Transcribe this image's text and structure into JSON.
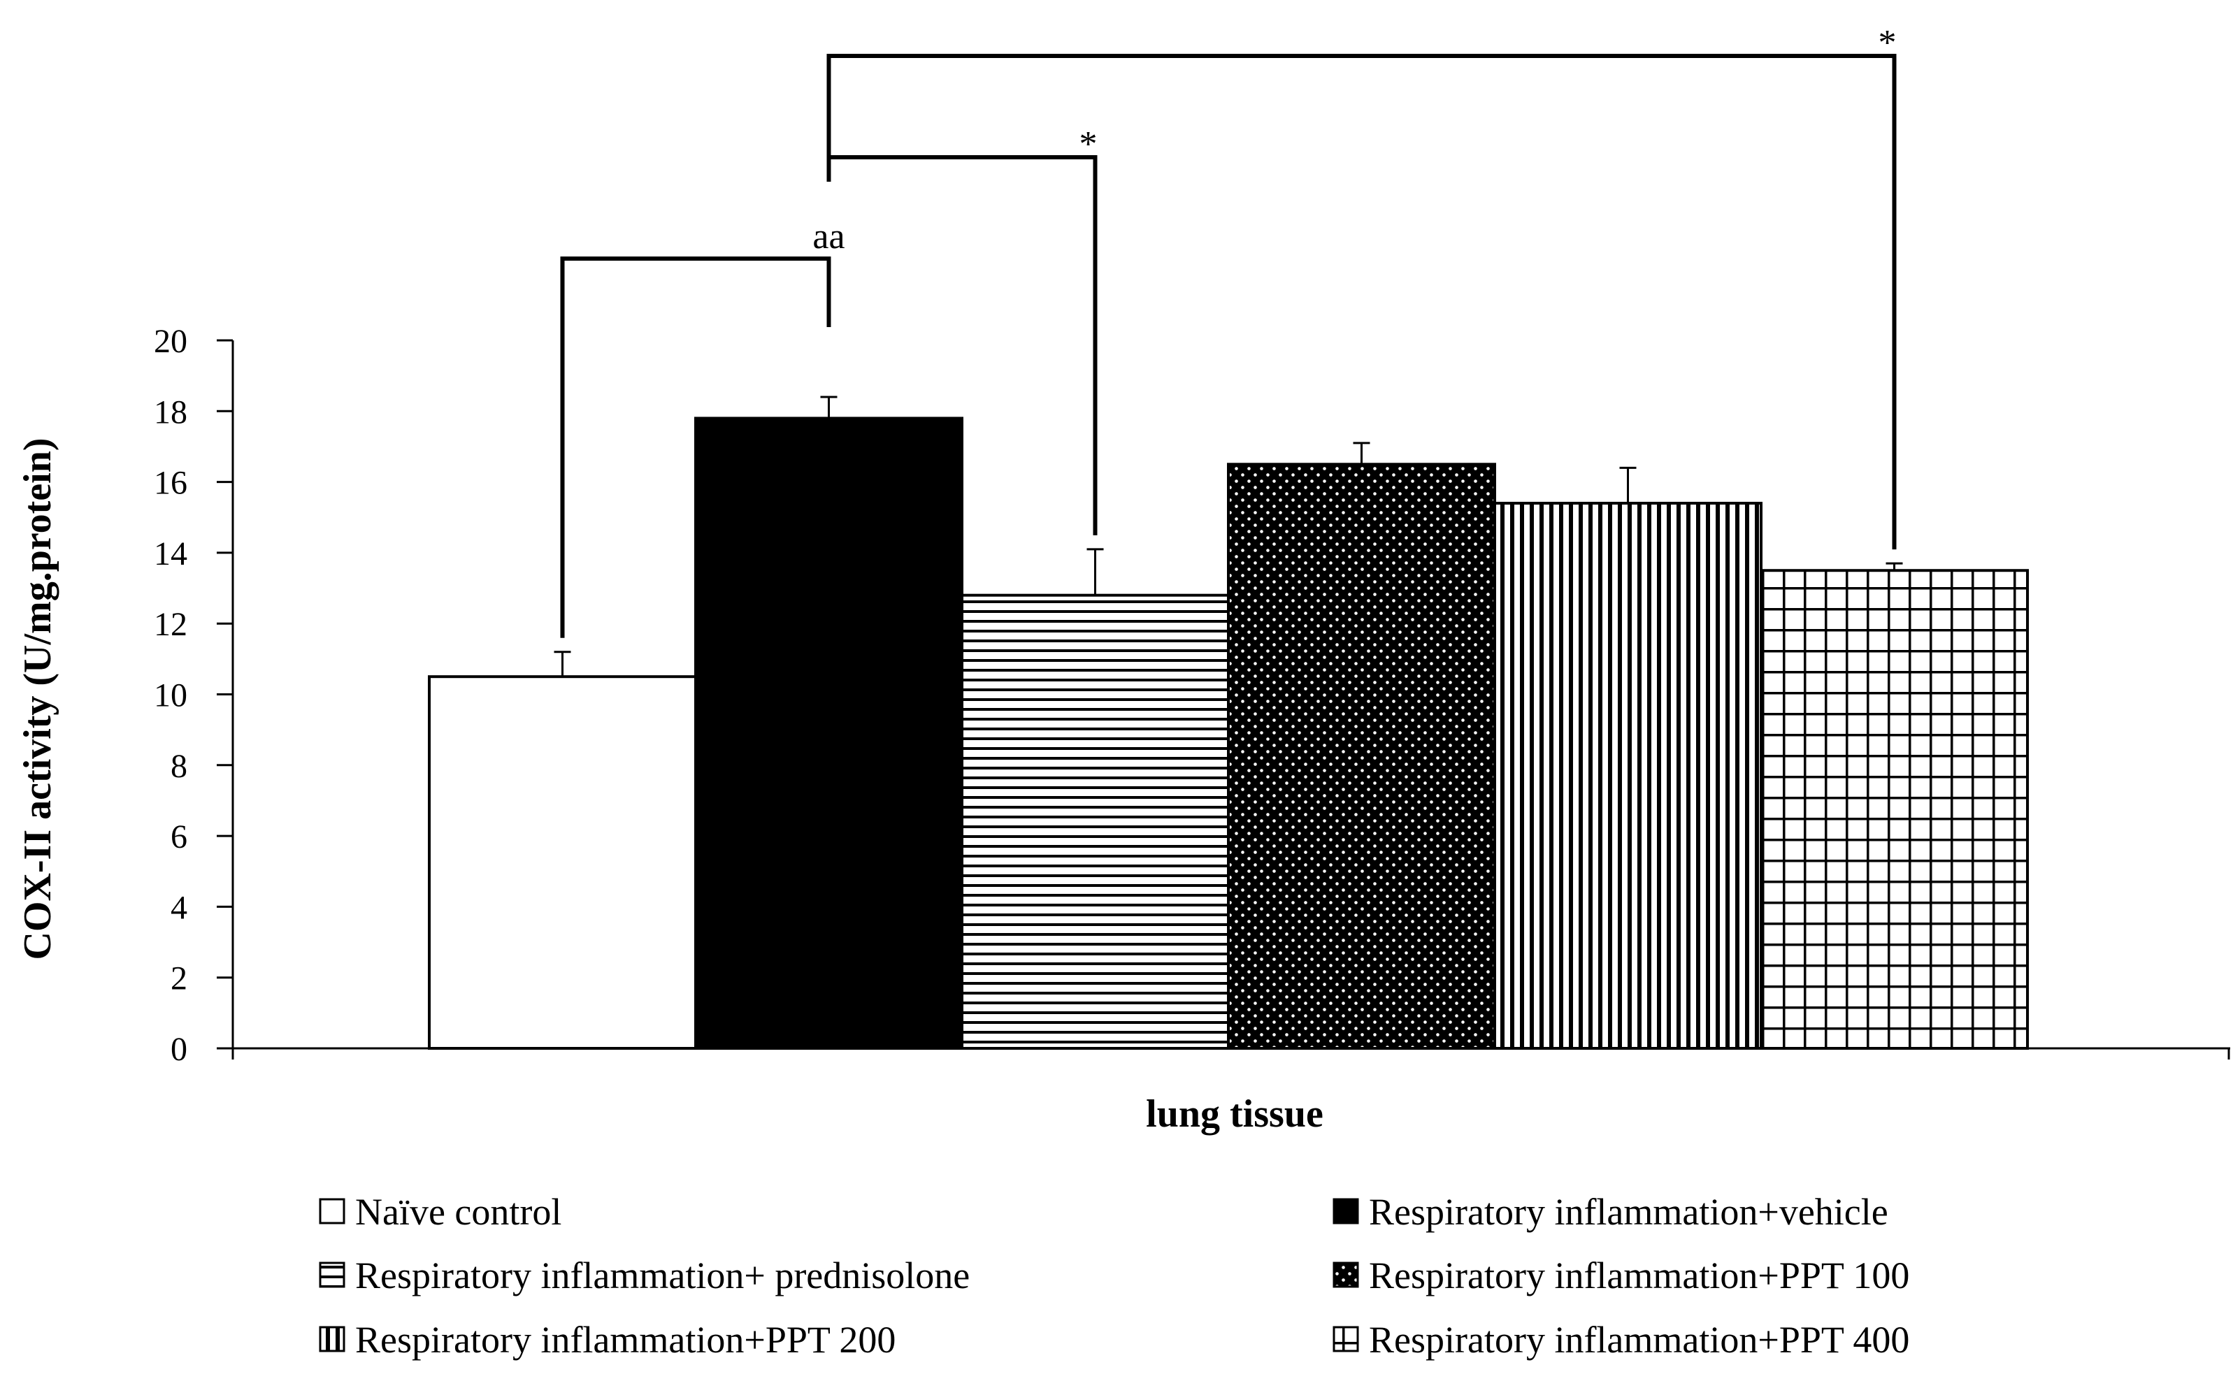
{
  "chart_data": {
    "type": "bar",
    "xlabel": "lung tissue",
    "ylabel": "COX-II activity (U/mg.protein)",
    "ylim": [
      0,
      20
    ],
    "yticks": [
      0,
      2,
      4,
      6,
      8,
      10,
      12,
      14,
      16,
      18,
      20
    ],
    "grid": false,
    "legend_position": "bottom",
    "series": [
      {
        "name": "Naïve control",
        "value": 10.5,
        "error": 0.7,
        "pattern": "white"
      },
      {
        "name": "Respiratory inflammation+vehicle",
        "value": 17.8,
        "error": 0.6,
        "pattern": "black"
      },
      {
        "name": "Respiratory inflammation+ prednisolone",
        "value": 12.8,
        "error": 1.3,
        "pattern": "hlines"
      },
      {
        "name": "Respiratory inflammation+PPT 100",
        "value": 16.5,
        "error": 0.6,
        "pattern": "dots"
      },
      {
        "name": "Respiratory inflammation+PPT 200",
        "value": 15.4,
        "error": 1.0,
        "pattern": "vlines"
      },
      {
        "name": "Respiratory inflammation+PPT 400",
        "value": 13.5,
        "error": 0.2,
        "pattern": "grid"
      }
    ],
    "annotations": [
      {
        "text": "aa",
        "from": 0,
        "to": 1
      },
      {
        "text": "*",
        "from": 1,
        "to": 2
      },
      {
        "text": "*",
        "from": 1,
        "to": 5
      }
    ]
  },
  "colors": {
    "axis": "#000000",
    "bar_fill_dark": "#000000",
    "bar_fill_light": "#ffffff"
  }
}
